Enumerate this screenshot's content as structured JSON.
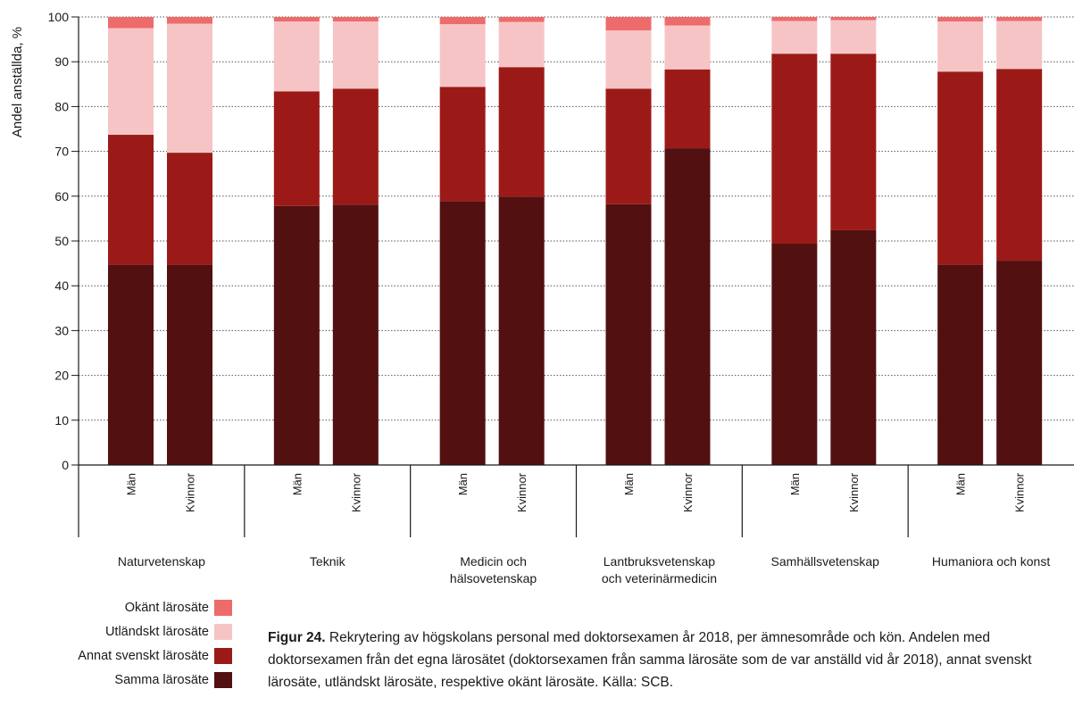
{
  "colors": {
    "samma": "#521011",
    "annat": "#9b1a17",
    "utl": "#f7c4c6",
    "okant": "#ee6b6c",
    "grid": "#555555",
    "axis": "#1a1a1a"
  },
  "chart_data": {
    "type": "bar",
    "stacked": true,
    "ylabel": "Andel anställda, %",
    "ylim": [
      0,
      100
    ],
    "yticks": [
      0,
      10,
      20,
      30,
      40,
      50,
      60,
      70,
      80,
      90,
      100
    ],
    "grid": "horizontal-dotted",
    "groups": [
      {
        "name": "Naturvetenskap",
        "lines": [
          "Naturvetenskap"
        ]
      },
      {
        "name": "Teknik",
        "lines": [
          "Teknik"
        ]
      },
      {
        "name": "Medicin och hälsovetenskap",
        "lines": [
          "Medicin och",
          "hälsovetenskap"
        ]
      },
      {
        "name": "Lantbruksvetenskap och veterinärmedicin",
        "lines": [
          "Lantbruksvetenskap",
          "och veterinärmedicin"
        ]
      },
      {
        "name": "Samhällsvetenskap",
        "lines": [
          "Samhällsvetenskap"
        ]
      },
      {
        "name": "Humaniora och konst",
        "lines": [
          "Humaniora och konst"
        ]
      }
    ],
    "subcategories": [
      "Män",
      "Kvinnor"
    ],
    "series": [
      {
        "name": "Samma lärosäte",
        "color_key": "samma",
        "values": [
          [
            44.7,
            44.7
          ],
          [
            57.8,
            58.1
          ],
          [
            58.9,
            59.9
          ],
          [
            58.2,
            70.7
          ],
          [
            49.4,
            52.4
          ],
          [
            44.7,
            45.6
          ]
        ]
      },
      {
        "name": "Annat svenskt lärosäte",
        "color_key": "annat",
        "values": [
          [
            29.0,
            25.0
          ],
          [
            25.6,
            25.9
          ],
          [
            25.5,
            28.9
          ],
          [
            25.8,
            17.6
          ],
          [
            42.4,
            39.4
          ],
          [
            43.1,
            42.8
          ]
        ]
      },
      {
        "name": "Utländskt lärosäte",
        "color_key": "utl",
        "values": [
          [
            23.8,
            28.8
          ],
          [
            15.6,
            15.0
          ],
          [
            14.0,
            10.1
          ],
          [
            13.0,
            9.8
          ],
          [
            7.3,
            7.5
          ],
          [
            11.2,
            10.7
          ]
        ]
      },
      {
        "name": "Okänt lärosäte",
        "color_key": "okant",
        "values": [
          [
            2.5,
            1.5
          ],
          [
            1.0,
            1.0
          ],
          [
            1.6,
            1.1
          ],
          [
            3.0,
            1.9
          ],
          [
            0.9,
            0.7
          ],
          [
            1.0,
            0.9
          ]
        ]
      }
    ],
    "legend": {
      "placement": "bottom-left",
      "order": [
        "Okänt lärosäte",
        "Utländskt lärosäte",
        "Annat svenskt lärosäte",
        "Samma lärosäte"
      ]
    }
  },
  "caption": {
    "label": "Figur 24.",
    "text": " Rekrytering av högskolans personal med doktorsexamen år 2018, per ämnesområde och kön. Andelen med doktorsexamen från det egna lärosätet (doktorsexamen från samma lärosäte som de var anställd vid år 2018), annat svenskt lärosäte, utländskt lärosäte, respektive okänt lärosäte. Källa: SCB."
  }
}
